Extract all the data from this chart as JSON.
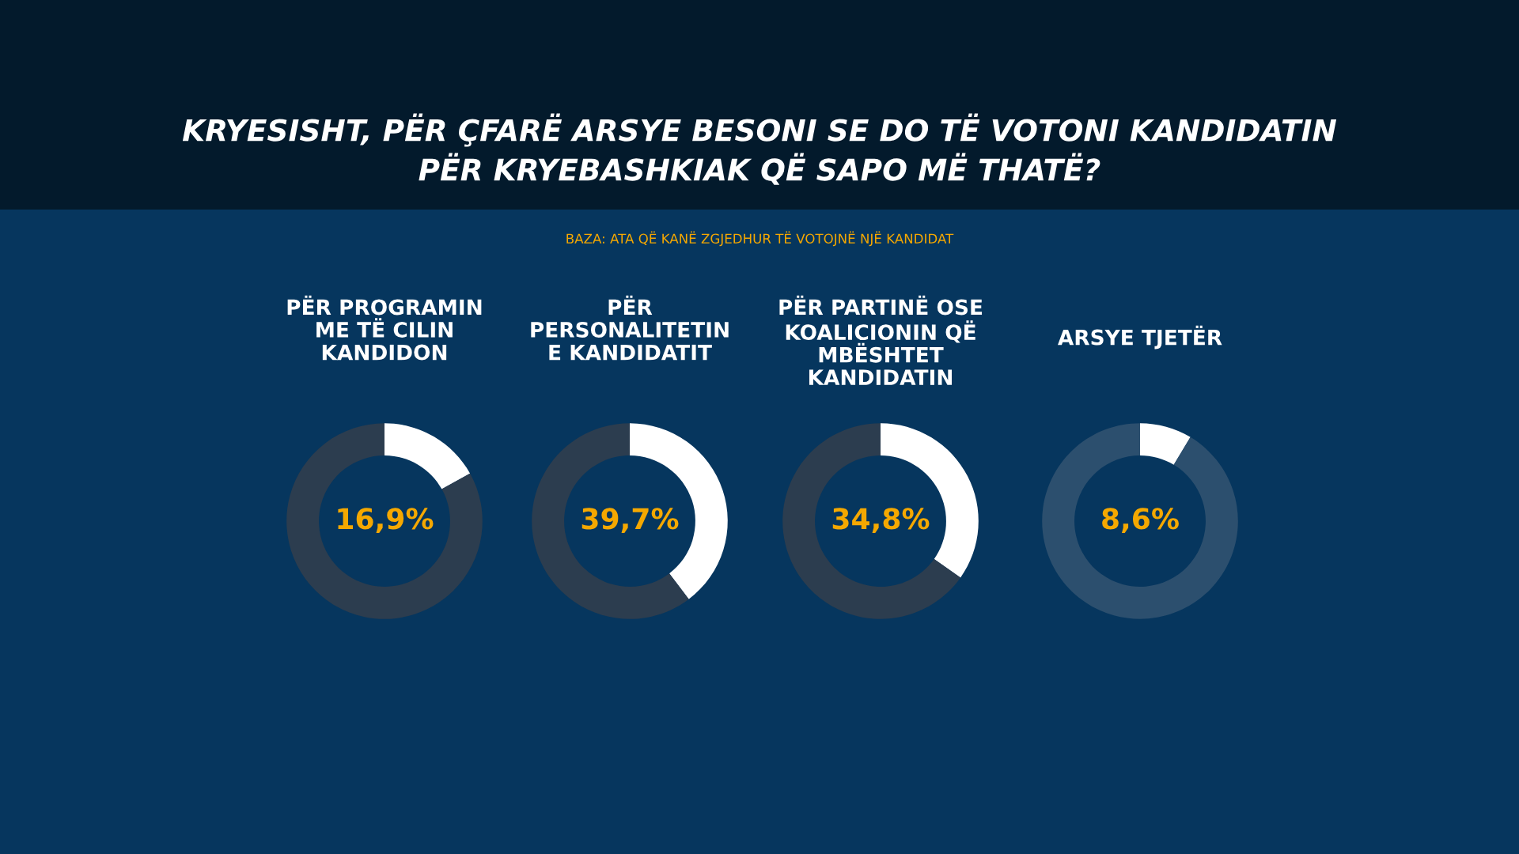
{
  "chart_data": [
    {
      "type": "donut",
      "title": "PËR PROGRAMIN\nME TË CILIN\nKANDIDON",
      "categories": [
        null,
        null
      ],
      "values": [
        16.9,
        83.1
      ],
      "colors": [
        "#ffffff",
        "#2c3d4f"
      ],
      "value_labels": [
        "16,9%",
        null
      ],
      "annotations": [
        "KRYESISHT, PËR ÇFARË ARSYE BESONI SE DO TË VOTONI KANDIDATIN\nPËR KRYEBASHKIAK QË SAPO MË THATË?",
        "BAZA: ATA QË KANË ZGJEDHUR TË VOTOJNË NJË KANDIDAT"
      ]
    },
    {
      "type": "donut",
      "title": "PËR\nPERSONALITETIN\nE KANDIDATIT",
      "categories": [
        null,
        null
      ],
      "values": [
        39.7,
        60.3
      ],
      "colors": [
        "#ffffff",
        "#2c3d4f"
      ],
      "value_labels": [
        "39,7%",
        null
      ]
    },
    {
      "type": "donut",
      "title": "PËR PARTINË OSE\nKOALICIONIN QË\nMBËSHTET\nKANDIDATIN",
      "categories": [
        null,
        null
      ],
      "values": [
        34.8,
        65.2
      ],
      "colors": [
        "#ffffff",
        "#2c3d4f"
      ],
      "value_labels": [
        "34,8%",
        null
      ]
    },
    {
      "type": "donut",
      "title": "ARSYE TJETËR",
      "categories": [
        null,
        null
      ],
      "values": [
        8.6,
        91.4
      ],
      "colors": [
        "#ffffff",
        "#2c4f6e"
      ],
      "value_labels": [
        "8,6%",
        null
      ]
    }
  ]
}
